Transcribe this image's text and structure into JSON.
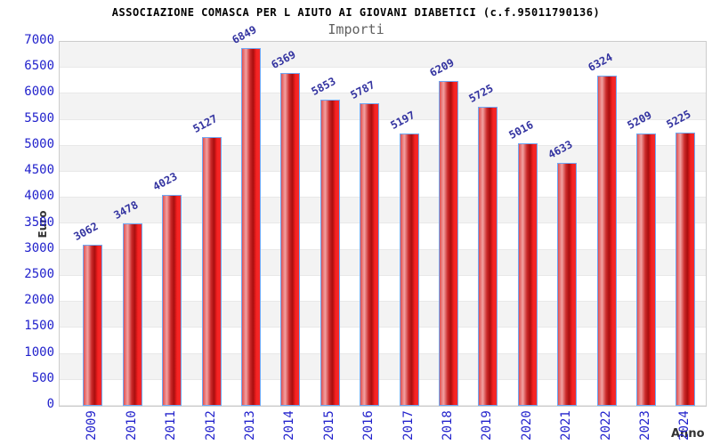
{
  "chart_data": {
    "type": "bar",
    "title": "ASSOCIAZIONE COMASCA PER L AIUTO AI GIOVANI DIABETICI (c.f.95011790136)",
    "subtitle": "Importi",
    "xlabel": "Anno",
    "ylabel": "Euro",
    "categories": [
      "2009",
      "2010",
      "2011",
      "2012",
      "2013",
      "2014",
      "2015",
      "2016",
      "2017",
      "2018",
      "2019",
      "2020",
      "2021",
      "2022",
      "2023",
      "2024"
    ],
    "values": [
      3062,
      3478,
      4023,
      5127,
      6849,
      6369,
      5853,
      5787,
      5197,
      6209,
      5725,
      5016,
      4633,
      6324,
      5209,
      5225
    ],
    "ylim": [
      0,
      7000
    ],
    "ytick_step": 500,
    "legend": "none",
    "grid": "alternating horizontal bands every 500",
    "layout": {
      "value_labels": "above bars, rotated",
      "x_tick_labels": "vertical, rotated 90"
    },
    "colors": {
      "bar_fill": "#ee2222",
      "bar_highlight": "#f2a2a2",
      "bar_shadow": "#a80f0f",
      "bar_border": "#6fa8f5",
      "tick_text": "#2222cc",
      "value_label_text": "#3333a0",
      "title_text": "#000000",
      "subtitle_text": "#606060",
      "axis_title_text": "#333333",
      "band_gray": "#f3f3f3",
      "plot_border": "#cccccc"
    }
  }
}
